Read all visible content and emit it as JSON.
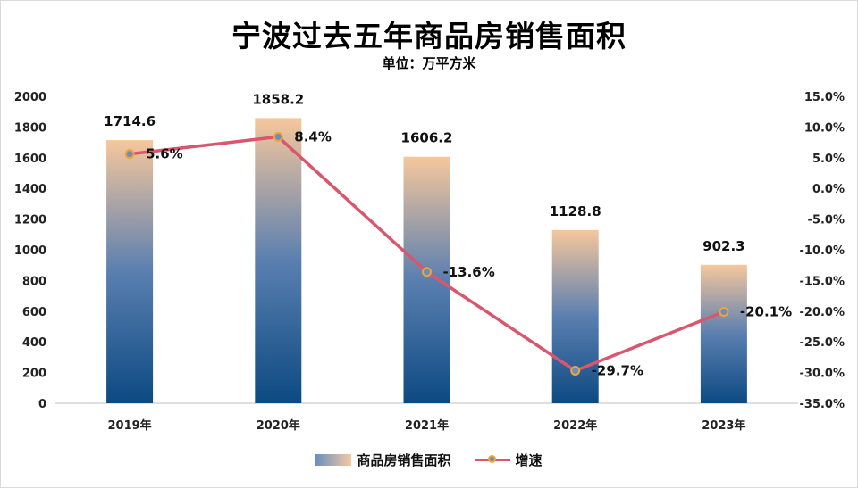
{
  "title": "宁波过去五年商品房销售面积",
  "subtitle": "单位：万平方米",
  "colors": {
    "bar_top": "#f6c79c",
    "bar_bottom": "#0c4a82",
    "line": "#d9566e",
    "marker_fill": "#6c8fb8",
    "marker_edge": "#f0a33a"
  },
  "chart_data": {
    "type": "bar",
    "categories": [
      "2019年",
      "2020年",
      "2021年",
      "2022年",
      "2023年"
    ],
    "series": [
      {
        "name": "商品房销售面积",
        "type": "bar",
        "axis": "left",
        "values": [
          1714.6,
          1858.2,
          1606.2,
          1128.8,
          902.3
        ],
        "labels": [
          "1714.6",
          "1858.2",
          "1606.2",
          "1128.8",
          "902.3"
        ]
      },
      {
        "name": "增速",
        "type": "line",
        "axis": "right",
        "values": [
          5.6,
          8.4,
          -13.6,
          -29.7,
          -20.1
        ],
        "labels": [
          "5.6%",
          "8.4%",
          "-13.6%",
          "-29.7%",
          "-20.1%"
        ]
      }
    ],
    "y_left": {
      "range": [
        0,
        2000
      ],
      "ticks": [
        "0",
        "200",
        "400",
        "600",
        "800",
        "1000",
        "1200",
        "1400",
        "1600",
        "1800",
        "2000"
      ]
    },
    "y_right": {
      "range": [
        -35,
        15
      ],
      "ticks": [
        "-35.0%",
        "-30.0%",
        "-25.0%",
        "-20.0%",
        "-15.0%",
        "-10.0%",
        "-5.0%",
        "0.0%",
        "5.0%",
        "10.0%",
        "15.0%"
      ]
    },
    "grid": false,
    "legend_position": "bottom"
  }
}
